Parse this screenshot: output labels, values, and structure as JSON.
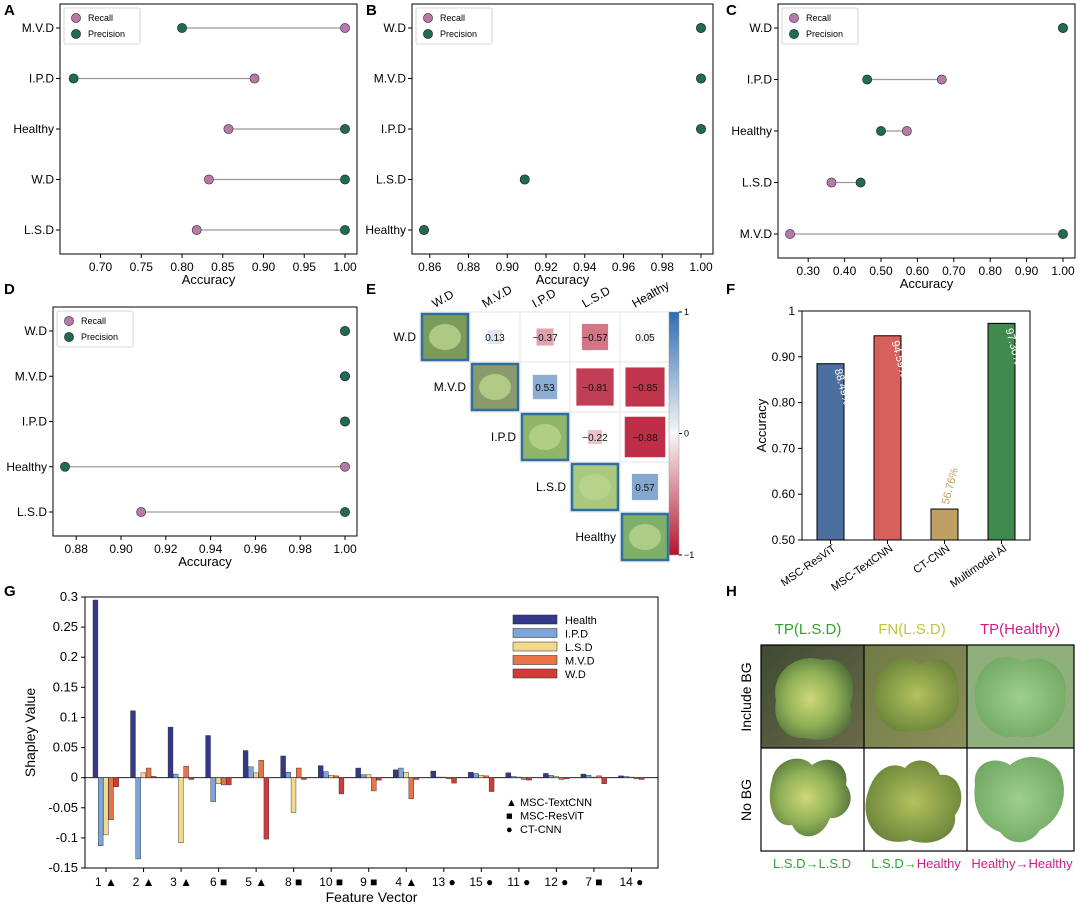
{
  "colors": {
    "recall": "#b879a8",
    "precision": "#1f6b58",
    "connector": "#9a9a9a",
    "health": "#35398a",
    "ipd": "#7ea5d9",
    "lsd": "#f3d98b",
    "mvd": "#ea7448",
    "wd": "#cf3d3b",
    "resvit": "#4d6fa0",
    "textcnn": "#d8605c",
    "ctcnn": "#bfa064",
    "multimodel": "#3f8a4c",
    "green_text": "#2ea32e",
    "yellow_text": "#c3c33a",
    "magenta_text": "#d31b8a"
  },
  "chart_data": [
    {
      "panel": "A",
      "type": "dumbbell",
      "xlabel": "Accuracy",
      "xlim": [
        0.665,
        1.0
      ],
      "xticks": [
        "0.70",
        "0.75",
        "0.80",
        "0.85",
        "0.90",
        "0.95",
        "1.00"
      ],
      "xtick_values": [
        0.7,
        0.75,
        0.8,
        0.85,
        0.9,
        0.95,
        1.0
      ],
      "legend": [
        "Recall",
        "Precision"
      ],
      "categories": [
        "M.V.D",
        "I.P.D",
        "Healthy",
        "W.D",
        "L.S.D"
      ],
      "recall": [
        1.0,
        0.889,
        0.857,
        0.833,
        0.818
      ],
      "precision": [
        0.8,
        0.667,
        1.0,
        1.0,
        1.0
      ]
    },
    {
      "panel": "B",
      "type": "dumbbell",
      "xlabel": "Accuracy",
      "xlim": [
        0.857,
        1.0
      ],
      "xticks": [
        "0.86",
        "0.88",
        "0.90",
        "0.92",
        "0.94",
        "0.96",
        "0.98",
        "1.00"
      ],
      "xtick_values": [
        0.86,
        0.88,
        0.9,
        0.92,
        0.94,
        0.96,
        0.98,
        1.0
      ],
      "legend": [
        "Recall",
        "Precision"
      ],
      "categories": [
        "W.D",
        "M.V.D",
        "I.P.D",
        "L.S.D",
        "Healthy"
      ],
      "recall": [
        1.0,
        1.0,
        1.0,
        0.909,
        0.857
      ],
      "precision": [
        1.0,
        1.0,
        1.0,
        0.909,
        0.857
      ]
    },
    {
      "panel": "C",
      "type": "dumbbell",
      "xlabel": "Accuracy",
      "xlim": [
        0.25,
        1.0
      ],
      "xticks": [
        "0.30",
        "0.40",
        "0.50",
        "0.60",
        "0.70",
        "0.80",
        "0.90",
        "1.00"
      ],
      "xtick_values": [
        0.3,
        0.4,
        0.5,
        0.6,
        0.7,
        0.8,
        0.9,
        1.0
      ],
      "legend": [
        "Recall",
        "Precision"
      ],
      "categories": [
        "W.D",
        "I.P.D",
        "Healthy",
        "L.S.D",
        "M.V.D"
      ],
      "recall": [
        1.0,
        0.667,
        0.571,
        0.364,
        0.25
      ],
      "precision": [
        1.0,
        0.462,
        0.5,
        0.444,
        1.0
      ]
    },
    {
      "panel": "D",
      "type": "dumbbell",
      "xlabel": "Accuracy",
      "xlim": [
        0.875,
        1.0
      ],
      "xticks": [
        "0.88",
        "0.90",
        "0.92",
        "0.94",
        "0.96",
        "0.98",
        "1.00"
      ],
      "xtick_values": [
        0.88,
        0.9,
        0.92,
        0.94,
        0.96,
        0.98,
        1.0
      ],
      "legend": [
        "Recall",
        "Precision"
      ],
      "categories": [
        "W.D",
        "M.V.D",
        "I.P.D",
        "Healthy",
        "L.S.D"
      ],
      "recall": [
        1.0,
        1.0,
        1.0,
        1.0,
        0.909
      ],
      "precision": [
        1.0,
        1.0,
        1.0,
        0.875,
        1.0
      ]
    },
    {
      "panel": "E",
      "type": "heatmap",
      "labels": [
        "W.D",
        "M.V.D",
        "I.P.D",
        "L.S.D",
        "Healthy"
      ],
      "cells": [
        {
          "row": 0,
          "col": 1,
          "value": 0.13,
          "label": "0.13"
        },
        {
          "row": 0,
          "col": 2,
          "value": -0.37,
          "label": "−0.37"
        },
        {
          "row": 0,
          "col": 3,
          "value": -0.57,
          "label": "−0.57"
        },
        {
          "row": 0,
          "col": 4,
          "value": 0.05,
          "label": "0.05"
        },
        {
          "row": 1,
          "col": 2,
          "value": 0.53,
          "label": "0.53"
        },
        {
          "row": 1,
          "col": 3,
          "value": -0.81,
          "label": "−0.81"
        },
        {
          "row": 1,
          "col": 4,
          "value": -0.85,
          "label": "−0.85"
        },
        {
          "row": 2,
          "col": 3,
          "value": -0.22,
          "label": "−0.22"
        },
        {
          "row": 2,
          "col": 4,
          "value": -0.88,
          "label": "−0.88"
        },
        {
          "row": 3,
          "col": 4,
          "value": 0.57,
          "label": "0.57"
        }
      ],
      "colorbar_ticks": [
        "1",
        "0",
        "−1"
      ],
      "colorbar_values": [
        1,
        0,
        -1
      ]
    },
    {
      "panel": "F",
      "type": "bar",
      "ylabel": "Accuracy",
      "ylim": [
        0.5,
        1.0
      ],
      "yticks": [
        "1",
        "0.90",
        "0.80",
        "0.70",
        "0.60",
        "0.50"
      ],
      "ytick_values": [
        1.0,
        0.9,
        0.8,
        0.7,
        0.6,
        0.5
      ],
      "categories": [
        "MSC-ResViT",
        "MSC-TextCNN",
        "CT-CNN",
        "Multimodel AI"
      ],
      "values": [
        0.8849,
        0.9459,
        0.5676,
        0.973
      ],
      "data_labels": [
        "88.49%",
        "94.59%",
        "56.76%",
        "97.30%"
      ]
    },
    {
      "panel": "G",
      "type": "bar",
      "xlabel": "Feature Vector",
      "ylabel": "Shapley Value",
      "ylim": [
        -0.15,
        0.3
      ],
      "yticks": [
        "0.3",
        "0.25",
        "0.2",
        "0.15",
        "0.1",
        "0.05",
        "0",
        "-0.05",
        "-0.1",
        "-0.15"
      ],
      "ytick_values": [
        0.3,
        0.25,
        0.2,
        0.15,
        0.1,
        0.05,
        0,
        -0.05,
        -0.1,
        -0.15
      ],
      "categories": [
        "1",
        "2",
        "3",
        "6",
        "5",
        "8",
        "10",
        "9",
        "4",
        "13",
        "15",
        "11",
        "12",
        "7",
        "14"
      ],
      "category_markers": [
        "▲",
        "▲",
        "▲",
        "■",
        "▲",
        "■",
        "■",
        "■",
        "▲",
        "●",
        "●",
        "●",
        "●",
        "■",
        "●"
      ],
      "series": [
        {
          "name": "Health",
          "values": [
            0.295,
            0.111,
            0.084,
            0.07,
            0.045,
            0.036,
            0.02,
            0.016,
            0.013,
            0.011,
            0.009,
            0.008,
            0.007,
            0.006,
            0.003
          ]
        },
        {
          "name": "I.P.D",
          "values": [
            -0.113,
            -0.135,
            0.006,
            -0.04,
            0.018,
            0.009,
            0.01,
            0.005,
            0.016,
            0.001,
            0.007,
            0.002,
            0.004,
            0.004,
            0.002
          ]
        },
        {
          "name": "L.S.D",
          "values": [
            -0.095,
            0.008,
            -0.108,
            -0.01,
            0.008,
            -0.058,
            0.004,
            0.005,
            0.009,
            0.001,
            0.004,
            0.001,
            0.002,
            0.001,
            0.001
          ]
        },
        {
          "name": "M.V.D",
          "values": [
            -0.07,
            0.016,
            0.019,
            -0.012,
            0.029,
            0.016,
            0.003,
            -0.022,
            -0.035,
            -0.002,
            0.003,
            -0.003,
            -0.003,
            0.003,
            -0.002
          ]
        },
        {
          "name": "W.D",
          "values": [
            -0.015,
            0.002,
            -0.003,
            -0.012,
            -0.102,
            -0.003,
            -0.027,
            -0.004,
            -0.003,
            -0.009,
            -0.023,
            -0.004,
            -0.002,
            -0.01,
            -0.003
          ]
        }
      ],
      "marker_legend": [
        {
          "marker": "▲",
          "label": "MSC-TextCNN"
        },
        {
          "marker": "■",
          "label": "MSC-ResViT"
        },
        {
          "marker": "●",
          "label": "CT-CNN"
        }
      ]
    }
  ],
  "panel_letters": [
    "A",
    "B",
    "C",
    "D",
    "E",
    "F",
    "G",
    "H"
  ],
  "panel_h": {
    "columns": [
      {
        "title": "TP(L.S.D)",
        "caption": "L.S.D→L.S.D"
      },
      {
        "title": "FN(L.S.D)",
        "caption_parts": [
          "L.S.D→",
          "Healthy"
        ]
      },
      {
        "title": "TP(Healthy)",
        "caption": "Healthy→Healthy"
      }
    ],
    "rows": [
      "Include BG",
      "No BG"
    ]
  }
}
